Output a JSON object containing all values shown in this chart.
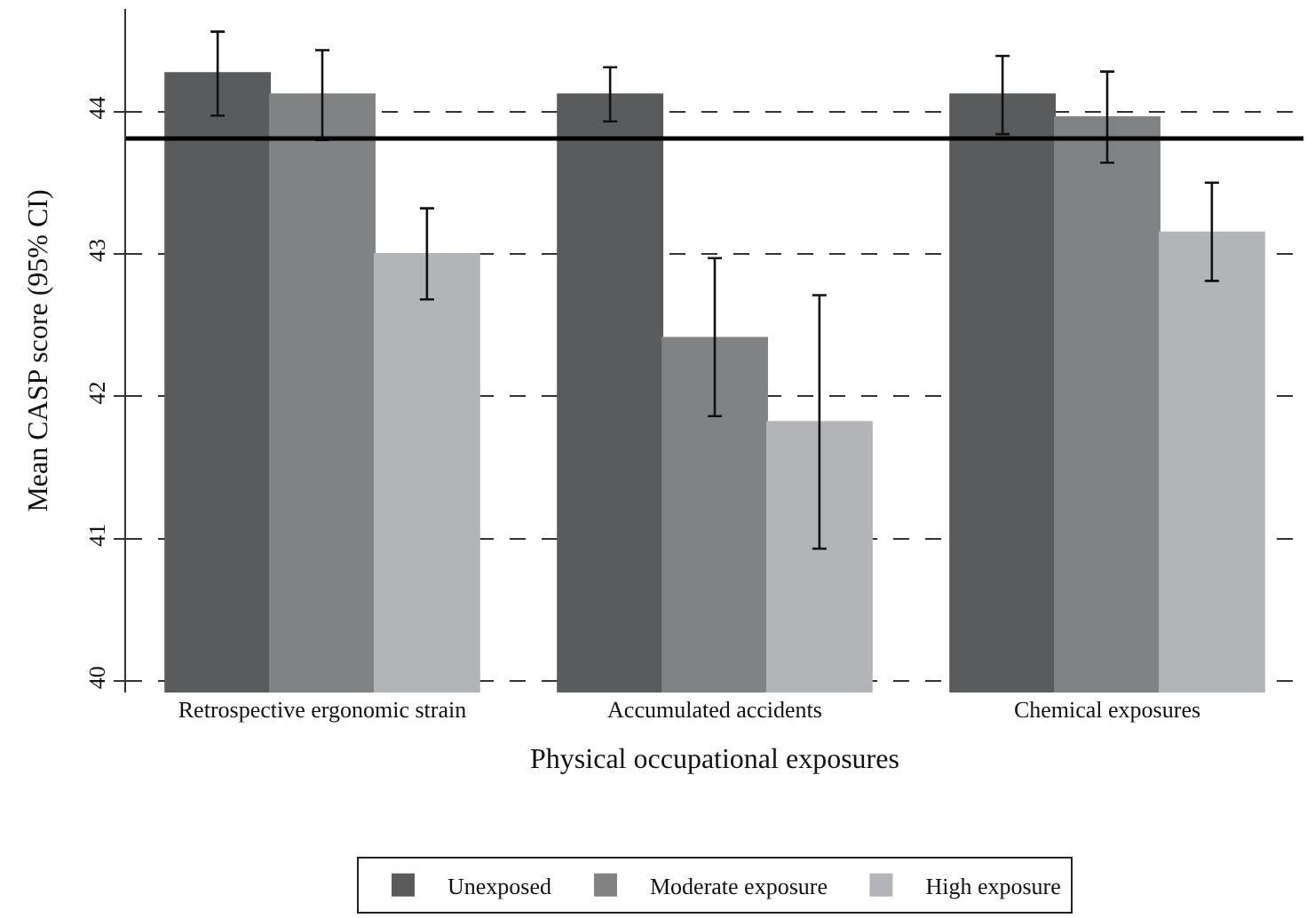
{
  "chart_data": {
    "type": "bar",
    "xlabel": "Physical occupational exposures",
    "ylabel": "Mean CASP score (95% CI)",
    "categories": [
      "Retrospective ergonomic strain",
      "Accumulated accidents",
      "Chemical exposures"
    ],
    "series": [
      {
        "name": "Unexposed",
        "color": "#5a5b5d",
        "values": [
          44.27,
          44.12,
          44.12
        ],
        "errors": [
          [
            43.97,
            44.56
          ],
          [
            43.93,
            44.31
          ],
          [
            43.84,
            44.39
          ]
        ]
      },
      {
        "name": "Moderate exposure",
        "color": "#818284",
        "values": [
          44.12,
          42.41,
          43.96
        ],
        "errors": [
          [
            43.8,
            44.43
          ],
          [
            41.86,
            42.97
          ],
          [
            43.64,
            44.28
          ]
        ]
      },
      {
        "name": "High exposure",
        "color": "#b3b4b7",
        "values": [
          43.0,
          41.82,
          43.15
        ],
        "errors": [
          [
            42.68,
            43.32
          ],
          [
            40.93,
            42.71
          ],
          [
            42.81,
            43.5
          ]
        ]
      }
    ],
    "ylim": [
      39.92,
      44.72
    ],
    "yticks": [
      40,
      41,
      42,
      43,
      44
    ],
    "grid": "y",
    "line_style": "dashed",
    "ref_lines": [
      {
        "axis": "y",
        "value": 43.81,
        "color": "#000000",
        "line_style": "solid"
      }
    ],
    "legend": "bottom"
  }
}
